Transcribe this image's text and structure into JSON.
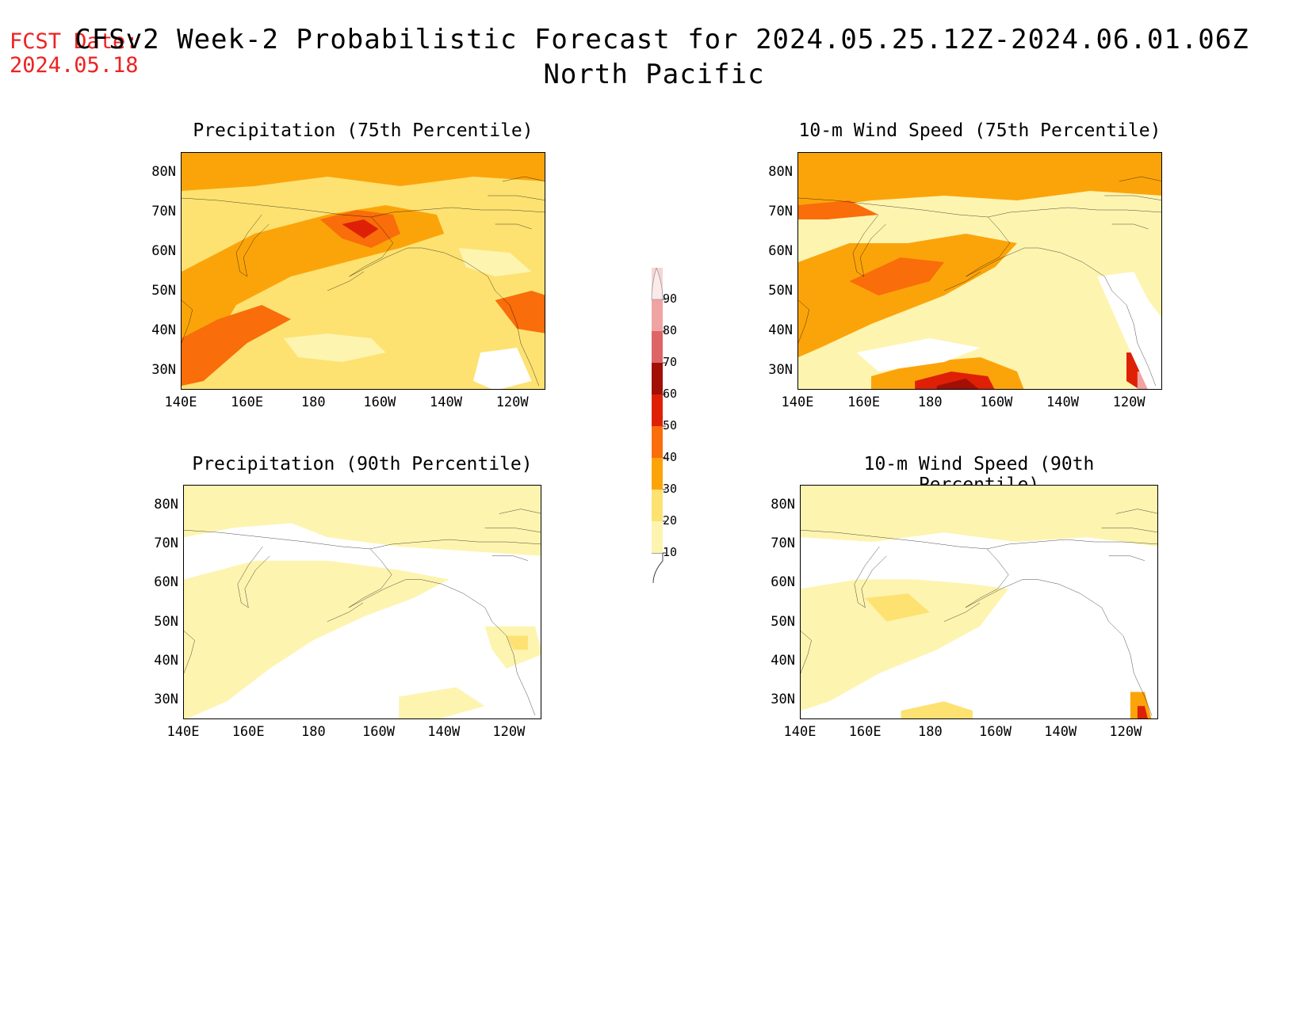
{
  "fcst_date": {
    "label": "FCST Date:",
    "value": "2024.05.18"
  },
  "title": {
    "line1": "CFSv2 Week-2 Probabilistic Forecast for 2024.05.25.12Z-2024.06.01.06Z",
    "line2": "North Pacific"
  },
  "colorbar": {
    "levels": [
      "10",
      "20",
      "30",
      "40",
      "50",
      "60",
      "70",
      "80",
      "90"
    ],
    "colors": [
      "#fdf4b0",
      "#fde272",
      "#fba40a",
      "#f96d0a",
      "#de2007",
      "#a10f05",
      "#dd6565",
      "#f0a3a3",
      "#f7d5d5"
    ]
  },
  "axes": {
    "lat_labels": [
      "80N",
      "70N",
      "60N",
      "50N",
      "40N",
      "30N"
    ],
    "lon_labels": [
      "140E",
      "160E",
      "180",
      "160W",
      "140W",
      "120W"
    ]
  },
  "panels": [
    {
      "id": "precip75",
      "title": "Precipitation (75th Percentile)",
      "intensity": "high"
    },
    {
      "id": "wind75",
      "title": "10-m Wind Speed (75th Percentile)",
      "intensity": "high"
    },
    {
      "id": "precip90",
      "title": "Precipitation (90th Percentile)",
      "intensity": "low"
    },
    {
      "id": "wind90",
      "title": "10-m Wind Speed (90th Percentile)",
      "intensity": "low"
    }
  ]
}
